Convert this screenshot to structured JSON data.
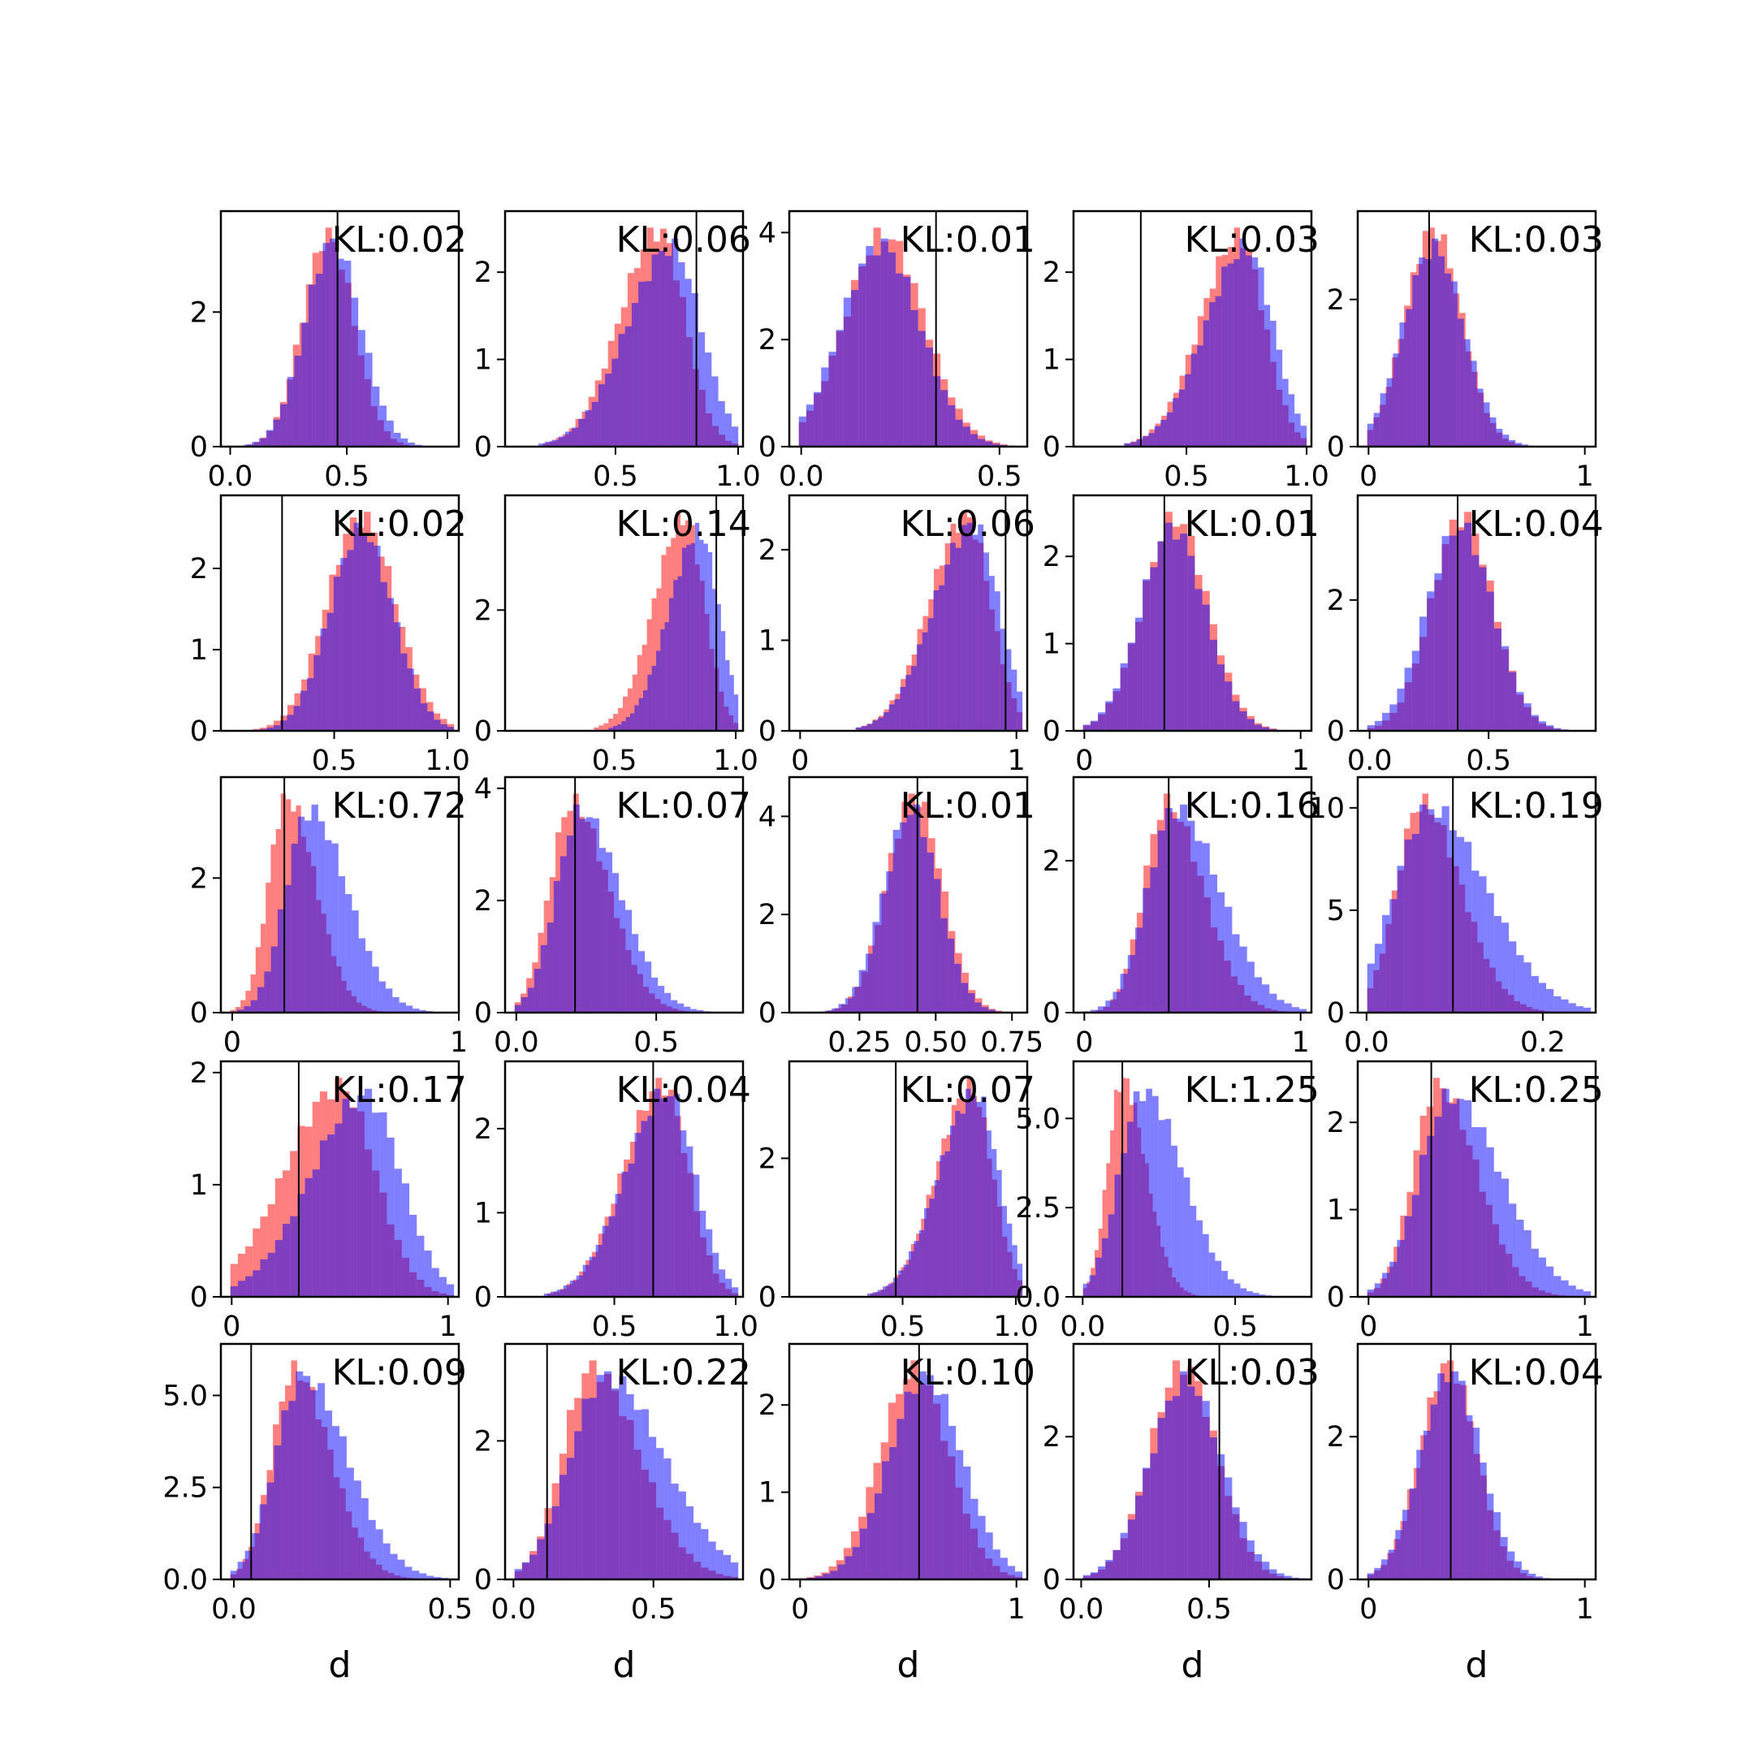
{
  "chart_data": {
    "type": "bar",
    "grid": false,
    "series_colors": {
      "red": "#ff0000",
      "blue": "#0000ff",
      "overlap": "#7f3fbf",
      "vline": "#000000"
    },
    "xlabel": "d",
    "panels": [
      {
        "kl": "KL:0.02",
        "mode": "normal",
        "mu": 0.42,
        "sd": 0.11,
        "mu_b": 0.44,
        "sd_b": 0.12,
        "xlim": [
          -0.04,
          0.98
        ],
        "ylim": [
          0,
          3.5
        ],
        "vline": 0.46,
        "xticks": [
          {
            "v": 0.0,
            "t": "0.0"
          },
          {
            "v": 0.5,
            "t": "0.5"
          }
        ],
        "yticks": [
          {
            "v": 0,
            "t": "0"
          },
          {
            "v": 2,
            "t": "2"
          }
        ]
      },
      {
        "kl": "KL:0.06",
        "mode": "beta",
        "mu": 0.68,
        "sd": 0.14,
        "mu_b": 0.73,
        "sd_b": 0.16,
        "xlim": [
          0.05,
          1.02
        ],
        "ylim": [
          0,
          2.7
        ],
        "vline": 0.83,
        "xticks": [
          {
            "v": 0.5,
            "t": "0.5"
          },
          {
            "v": 1.0,
            "t": "1.0"
          }
        ],
        "yticks": [
          {
            "v": 0,
            "t": "0"
          },
          {
            "v": 1,
            "t": "1"
          },
          {
            "v": 2,
            "t": "2"
          }
        ]
      },
      {
        "kl": "KL:0.01",
        "mode": "normal",
        "mu": 0.21,
        "sd": 0.1,
        "mu_b": 0.2,
        "sd_b": 0.1,
        "xlim": [
          -0.03,
          0.57
        ],
        "ylim": [
          0,
          4.4
        ],
        "vline": 0.34,
        "xticks": [
          {
            "v": 0.0,
            "t": "0.0"
          },
          {
            "v": 0.5,
            "t": "0.5"
          }
        ],
        "yticks": [
          {
            "v": 0,
            "t": "0"
          },
          {
            "v": 2,
            "t": "2"
          },
          {
            "v": 4,
            "t": "4"
          }
        ]
      },
      {
        "kl": "KL:0.03",
        "mode": "beta",
        "mu": 0.72,
        "sd": 0.14,
        "mu_b": 0.75,
        "sd_b": 0.15,
        "xlim": [
          0.03,
          1.02
        ],
        "ylim": [
          0,
          2.7
        ],
        "vline": 0.31,
        "xticks": [
          {
            "v": 0.5,
            "t": "0.5"
          },
          {
            "v": 1.0,
            "t": "1.0"
          }
        ],
        "yticks": [
          {
            "v": 0,
            "t": "0"
          },
          {
            "v": 1,
            "t": "1"
          },
          {
            "v": 2,
            "t": "2"
          }
        ]
      },
      {
        "kl": "KL:0.03",
        "mode": "normal",
        "mu": 0.3,
        "sd": 0.13,
        "mu_b": 0.3,
        "sd_b": 0.14,
        "xlim": [
          -0.05,
          1.05
        ],
        "ylim": [
          0,
          3.2
        ],
        "vline": 0.28,
        "xticks": [
          {
            "v": 0,
            "t": "0"
          },
          {
            "v": 1,
            "t": "1"
          }
        ],
        "yticks": [
          {
            "v": 0,
            "t": "0"
          },
          {
            "v": 2,
            "t": "2"
          }
        ]
      },
      {
        "kl": "KL:0.02",
        "mode": "normal",
        "mu": 0.62,
        "sd": 0.15,
        "mu_b": 0.62,
        "sd_b": 0.14,
        "xlim": [
          0.0,
          1.05
        ],
        "ylim": [
          0,
          2.9
        ],
        "vline": 0.27,
        "xticks": [
          {
            "v": 0.5,
            "t": "0.5"
          },
          {
            "v": 1.0,
            "t": "1.0"
          }
        ],
        "yticks": [
          {
            "v": 0,
            "t": "0"
          },
          {
            "v": 1,
            "t": "1"
          },
          {
            "v": 2,
            "t": "2"
          }
        ]
      },
      {
        "kl": "KL:0.14",
        "mode": "beta",
        "mu": 0.79,
        "sd": 0.11,
        "mu_b": 0.85,
        "sd_b": 0.11,
        "xlim": [
          0.05,
          1.03
        ],
        "ylim": [
          0,
          3.9
        ],
        "vline": 0.92,
        "xticks": [
          {
            "v": 0.5,
            "t": "0.5"
          },
          {
            "v": 1.0,
            "t": "1.0"
          }
        ],
        "yticks": [
          {
            "v": 0,
            "t": "0"
          },
          {
            "v": 2,
            "t": "2"
          }
        ]
      },
      {
        "kl": "KL:0.06",
        "mode": "beta",
        "mu": 0.77,
        "sd": 0.15,
        "mu_b": 0.8,
        "sd_b": 0.16,
        "xlim": [
          -0.05,
          1.05
        ],
        "ylim": [
          0,
          2.6
        ],
        "vline": 0.95,
        "xticks": [
          {
            "v": 0,
            "t": "0"
          },
          {
            "v": 1,
            "t": "1"
          }
        ],
        "yticks": [
          {
            "v": 0,
            "t": "0"
          },
          {
            "v": 1,
            "t": "1"
          },
          {
            "v": 2,
            "t": "2"
          }
        ]
      },
      {
        "kl": "KL:0.01",
        "mode": "normal",
        "mu": 0.42,
        "sd": 0.15,
        "mu_b": 0.41,
        "sd_b": 0.15,
        "xlim": [
          -0.05,
          1.05
        ],
        "ylim": [
          0,
          2.7
        ],
        "vline": 0.37,
        "xticks": [
          {
            "v": 0,
            "t": "0"
          },
          {
            "v": 1,
            "t": "1"
          }
        ],
        "yticks": [
          {
            "v": 0,
            "t": "0"
          },
          {
            "v": 1,
            "t": "1"
          },
          {
            "v": 2,
            "t": "2"
          }
        ]
      },
      {
        "kl": "KL:0.04",
        "mode": "normal",
        "mu": 0.39,
        "sd": 0.13,
        "mu_b": 0.38,
        "sd_b": 0.14,
        "xlim": [
          -0.05,
          0.95
        ],
        "ylim": [
          0,
          3.6
        ],
        "vline": 0.37,
        "xticks": [
          {
            "v": 0.0,
            "t": "0.0"
          },
          {
            "v": 0.5,
            "t": "0.5"
          }
        ],
        "yticks": [
          {
            "v": 0,
            "t": "0"
          },
          {
            "v": 2,
            "t": "2"
          }
        ]
      },
      {
        "kl": "KL:0.72",
        "mode": "skew",
        "mu": 0.24,
        "sd": 0.1,
        "mu_b": 0.34,
        "sd_b": 0.13,
        "xlim": [
          -0.05,
          1.0
        ],
        "ylim": [
          0,
          3.5
        ],
        "vline": 0.23,
        "xticks": [
          {
            "v": 0,
            "t": "0"
          },
          {
            "v": 1,
            "t": "1"
          }
        ],
        "yticks": [
          {
            "v": 0,
            "t": "0"
          },
          {
            "v": 2,
            "t": "2"
          }
        ]
      },
      {
        "kl": "KL:0.07",
        "mode": "skew",
        "mu": 0.2,
        "sd": 0.1,
        "mu_b": 0.23,
        "sd_b": 0.11,
        "xlim": [
          -0.04,
          0.81
        ],
        "ylim": [
          0,
          4.2
        ],
        "vline": 0.21,
        "xticks": [
          {
            "v": 0.0,
            "t": "0.0"
          },
          {
            "v": 0.5,
            "t": "0.5"
          }
        ],
        "yticks": [
          {
            "v": 0,
            "t": "0"
          },
          {
            "v": 2,
            "t": "2"
          },
          {
            "v": 4,
            "t": "4"
          }
        ]
      },
      {
        "kl": "KL:0.01",
        "mode": "normal",
        "mu": 0.43,
        "sd": 0.09,
        "mu_b": 0.42,
        "sd_b": 0.09,
        "xlim": [
          0.02,
          0.8
        ],
        "ylim": [
          0,
          4.8
        ],
        "vline": 0.44,
        "xticks": [
          {
            "v": 0.25,
            "t": "0.25"
          },
          {
            "v": 0.5,
            "t": "0.50"
          },
          {
            "v": 0.75,
            "t": "0.75"
          }
        ],
        "yticks": [
          {
            "v": 0,
            "t": "0"
          },
          {
            "v": 2,
            "t": "2"
          },
          {
            "v": 4,
            "t": "4"
          }
        ]
      },
      {
        "kl": "KL:0.16",
        "mode": "skew",
        "mu": 0.38,
        "sd": 0.13,
        "mu_b": 0.42,
        "sd_b": 0.16,
        "xlim": [
          -0.05,
          1.05
        ],
        "ylim": [
          0,
          3.1
        ],
        "vline": 0.39,
        "xticks": [
          {
            "v": 0,
            "t": "0"
          },
          {
            "v": 1,
            "t": "1"
          }
        ],
        "yticks": [
          {
            "v": 0,
            "t": "0"
          },
          {
            "v": 2,
            "t": "2"
          }
        ]
      },
      {
        "kl": "KL:0.19",
        "mode": "skew",
        "mu": 0.062,
        "sd": 0.035,
        "mu_b": 0.072,
        "sd_b": 0.05,
        "xlim": [
          -0.01,
          0.26
        ],
        "ylim": [
          0,
          11.5
        ],
        "vline": 0.098,
        "xticks": [
          {
            "v": 0.0,
            "t": "0.0"
          },
          {
            "v": 0.2,
            "t": "0.2"
          }
        ],
        "yticks": [
          {
            "v": 0,
            "t": "0"
          },
          {
            "v": 5,
            "t": "5"
          },
          {
            "v": 10,
            "t": "10"
          }
        ]
      },
      {
        "kl": "KL:0.17",
        "mode": "beta",
        "mu": 0.5,
        "sd": 0.22,
        "mu_b": 0.62,
        "sd_b": 0.22,
        "xlim": [
          -0.05,
          1.05
        ],
        "ylim": [
          0,
          2.1
        ],
        "vline": 0.31,
        "xticks": [
          {
            "v": 0,
            "t": "0"
          },
          {
            "v": 1,
            "t": "1"
          }
        ],
        "yticks": [
          {
            "v": 0,
            "t": "0"
          },
          {
            "v": 1,
            "t": "1"
          },
          {
            "v": 2,
            "t": "2"
          }
        ]
      },
      {
        "kl": "KL:0.04",
        "mode": "beta",
        "mu": 0.7,
        "sd": 0.14,
        "mu_b": 0.72,
        "sd_b": 0.15,
        "xlim": [
          0.05,
          1.03
        ],
        "ylim": [
          0,
          2.8
        ],
        "vline": 0.66,
        "xticks": [
          {
            "v": 0.5,
            "t": "0.5"
          },
          {
            "v": 1.0,
            "t": "1.0"
          }
        ],
        "yticks": [
          {
            "v": 0,
            "t": "0"
          },
          {
            "v": 1,
            "t": "1"
          },
          {
            "v": 2,
            "t": "2"
          }
        ]
      },
      {
        "kl": "KL:0.07",
        "mode": "beta",
        "mu": 0.8,
        "sd": 0.13,
        "mu_b": 0.82,
        "sd_b": 0.14,
        "xlim": [
          0.0,
          1.05
        ],
        "ylim": [
          0,
          3.4
        ],
        "vline": 0.47,
        "xticks": [
          {
            "v": 0.5,
            "t": "0.5"
          },
          {
            "v": 1.0,
            "t": "1.0"
          }
        ],
        "yticks": [
          {
            "v": 0,
            "t": "0"
          },
          {
            "v": 2,
            "t": "2"
          }
        ]
      },
      {
        "kl": "KL:1.25",
        "mode": "skew",
        "mu": 0.13,
        "sd": 0.06,
        "mu_b": 0.2,
        "sd_b": 0.1,
        "xlim": [
          -0.03,
          0.75
        ],
        "ylim": [
          0,
          6.6
        ],
        "vline": 0.13,
        "xticks": [
          {
            "v": 0.0,
            "t": "0.0"
          },
          {
            "v": 0.5,
            "t": "0.5"
          }
        ],
        "yticks": [
          {
            "v": 0,
            "t": "0.0"
          },
          {
            "v": 2.5,
            "t": "2.5"
          },
          {
            "v": 5,
            "t": "5.0"
          }
        ]
      },
      {
        "kl": "KL:0.25",
        "mode": "skew",
        "mu": 0.32,
        "sd": 0.14,
        "mu_b": 0.38,
        "sd_b": 0.18,
        "xlim": [
          -0.05,
          1.05
        ],
        "ylim": [
          0,
          2.7
        ],
        "vline": 0.29,
        "xticks": [
          {
            "v": 0,
            "t": "0"
          },
          {
            "v": 1,
            "t": "1"
          }
        ],
        "yticks": [
          {
            "v": 0,
            "t": "0"
          },
          {
            "v": 1,
            "t": "1"
          },
          {
            "v": 2,
            "t": "2"
          }
        ]
      },
      {
        "kl": "KL:0.09",
        "mode": "skew",
        "mu": 0.14,
        "sd": 0.065,
        "mu_b": 0.16,
        "sd_b": 0.08,
        "xlim": [
          -0.03,
          0.52
        ],
        "ylim": [
          0,
          6.4
        ],
        "vline": 0.04,
        "xticks": [
          {
            "v": 0.0,
            "t": "0.0"
          },
          {
            "v": 0.5,
            "t": "0.5"
          }
        ],
        "yticks": [
          {
            "v": 0,
            "t": "0.0"
          },
          {
            "v": 2.5,
            "t": "2.5"
          },
          {
            "v": 5,
            "t": "5.0"
          }
        ]
      },
      {
        "kl": "KL:0.22",
        "mode": "skew",
        "mu": 0.28,
        "sd": 0.13,
        "mu_b": 0.33,
        "sd_b": 0.16,
        "xlim": [
          -0.03,
          0.82
        ],
        "ylim": [
          0,
          3.4
        ],
        "vline": 0.12,
        "xticks": [
          {
            "v": 0.0,
            "t": "0.0"
          },
          {
            "v": 0.5,
            "t": "0.5"
          }
        ],
        "yticks": [
          {
            "v": 0,
            "t": "0"
          },
          {
            "v": 2,
            "t": "2"
          }
        ]
      },
      {
        "kl": "KL:0.10",
        "mode": "normal",
        "mu": 0.53,
        "sd": 0.16,
        "mu_b": 0.58,
        "sd_b": 0.17,
        "xlim": [
          -0.05,
          1.05
        ],
        "ylim": [
          0,
          2.7
        ],
        "vline": 0.55,
        "xticks": [
          {
            "v": 0,
            "t": "0"
          },
          {
            "v": 1,
            "t": "1"
          }
        ],
        "yticks": [
          {
            "v": 0,
            "t": "0"
          },
          {
            "v": 1,
            "t": "1"
          },
          {
            "v": 2,
            "t": "2"
          }
        ]
      },
      {
        "kl": "KL:0.03",
        "mode": "normal",
        "mu": 0.4,
        "sd": 0.13,
        "mu_b": 0.41,
        "sd_b": 0.14,
        "xlim": [
          -0.03,
          0.9
        ],
        "ylim": [
          0,
          3.3
        ],
        "vline": 0.54,
        "xticks": [
          {
            "v": 0.0,
            "t": "0.0"
          },
          {
            "v": 0.5,
            "t": "0.5"
          }
        ],
        "yticks": [
          {
            "v": 0,
            "t": "0"
          },
          {
            "v": 2,
            "t": "2"
          }
        ]
      },
      {
        "kl": "KL:0.04",
        "mode": "normal",
        "mu": 0.37,
        "sd": 0.13,
        "mu_b": 0.38,
        "sd_b": 0.14,
        "xlim": [
          -0.05,
          1.05
        ],
        "ylim": [
          0,
          3.3
        ],
        "vline": 0.38,
        "xticks": [
          {
            "v": 0,
            "t": "0"
          },
          {
            "v": 1,
            "t": "1"
          }
        ],
        "yticks": [
          {
            "v": 0,
            "t": "0"
          },
          {
            "v": 2,
            "t": "2"
          }
        ]
      }
    ]
  }
}
